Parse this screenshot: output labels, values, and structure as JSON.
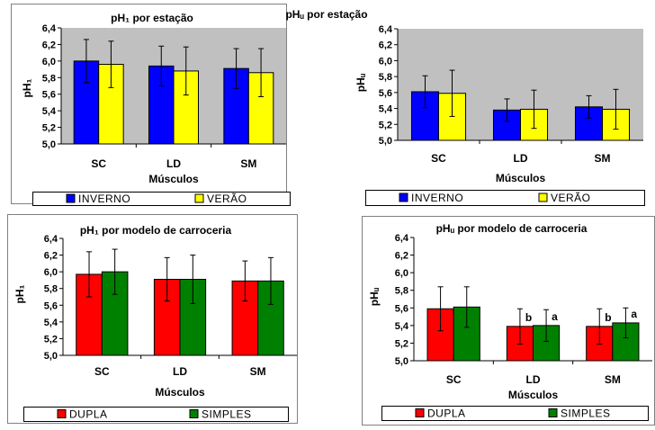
{
  "chart_data": [
    {
      "type": "bar",
      "title": "pH₁ por estação",
      "ylabel": "pH₁",
      "xlabel": "Músculos",
      "ylim": [
        5.0,
        6.4
      ],
      "yticks": [
        "6,4",
        "6,2",
        "6,0",
        "5,8",
        "5,6",
        "5,4",
        "5,2",
        "5,0"
      ],
      "categories": [
        "SC",
        "LD",
        "SM"
      ],
      "series": [
        {
          "name": "INVERNO",
          "color": "#0000ff",
          "values": [
            6.0,
            5.94,
            5.91
          ],
          "err": [
            0.26,
            0.24,
            0.24
          ]
        },
        {
          "name": "VERÃO",
          "color": "#ffff00",
          "values": [
            5.96,
            5.88,
            5.86
          ],
          "err": [
            0.28,
            0.29,
            0.29
          ]
        }
      ],
      "annotations": [],
      "legend": "bottom",
      "background": "#c0c0c0"
    },
    {
      "type": "bar",
      "title": "pHᵤ por estação",
      "ylabel": "pHᵤ",
      "xlabel": "Músculos",
      "ylim": [
        5.0,
        6.4
      ],
      "yticks": [
        "6,4",
        "6,2",
        "6,0",
        "5,8",
        "5,6",
        "5,4",
        "5,2",
        "5,0"
      ],
      "categories": [
        "SC",
        "LD",
        "SM"
      ],
      "series": [
        {
          "name": "INVERNO",
          "color": "#0000ff",
          "values": [
            5.61,
            5.38,
            5.42
          ],
          "err": [
            0.2,
            0.14,
            0.14
          ]
        },
        {
          "name": "VERÃO",
          "color": "#ffff00",
          "values": [
            5.59,
            5.39,
            5.39
          ],
          "err": [
            0.29,
            0.24,
            0.25
          ]
        }
      ],
      "annotations": [],
      "legend": "bottom",
      "background": "#c0c0c0"
    },
    {
      "type": "bar",
      "title": "pH₁ por modelo de carroceria",
      "ylabel": "pH₁",
      "xlabel": "Músculos",
      "ylim": [
        5.0,
        6.4
      ],
      "yticks": [
        "6,4",
        "6,2",
        "6,0",
        "5,8",
        "5,6",
        "5,4",
        "5,2",
        "5,0"
      ],
      "categories": [
        "SC",
        "LD",
        "SM"
      ],
      "series": [
        {
          "name": "DUPLA",
          "color": "#ff0000",
          "values": [
            5.97,
            5.91,
            5.89
          ],
          "err": [
            0.27,
            0.26,
            0.24
          ]
        },
        {
          "name": "SIMPLES",
          "color": "#008000",
          "values": [
            6.0,
            5.91,
            5.89
          ],
          "err": [
            0.27,
            0.29,
            0.28
          ]
        }
      ],
      "annotations": [],
      "legend": "bottom",
      "background": "#ffffff"
    },
    {
      "type": "bar",
      "title": "pHᵤ por modelo de carroceria",
      "ylabel": "pHᵤ",
      "xlabel": "Músculos",
      "ylim": [
        5.0,
        6.4
      ],
      "yticks": [
        "6,4",
        "6,2",
        "6,0",
        "5,8",
        "5,6",
        "5,4",
        "5,2",
        "5,0"
      ],
      "categories": [
        "SC",
        "LD",
        "SM"
      ],
      "series": [
        {
          "name": "DUPLA",
          "color": "#ff0000",
          "values": [
            5.59,
            5.39,
            5.39
          ],
          "err": [
            0.25,
            0.2,
            0.2
          ]
        },
        {
          "name": "SIMPLES",
          "color": "#008000",
          "values": [
            5.61,
            5.4,
            5.43
          ],
          "err": [
            0.23,
            0.18,
            0.17
          ]
        }
      ],
      "annotations": [
        {
          "category": 1,
          "series": 0,
          "text": "b"
        },
        {
          "category": 1,
          "series": 1,
          "text": "a"
        },
        {
          "category": 2,
          "series": 0,
          "text": "b"
        },
        {
          "category": 2,
          "series": 1,
          "text": "a"
        }
      ],
      "legend": "bottom",
      "background": "#ffffff"
    }
  ]
}
